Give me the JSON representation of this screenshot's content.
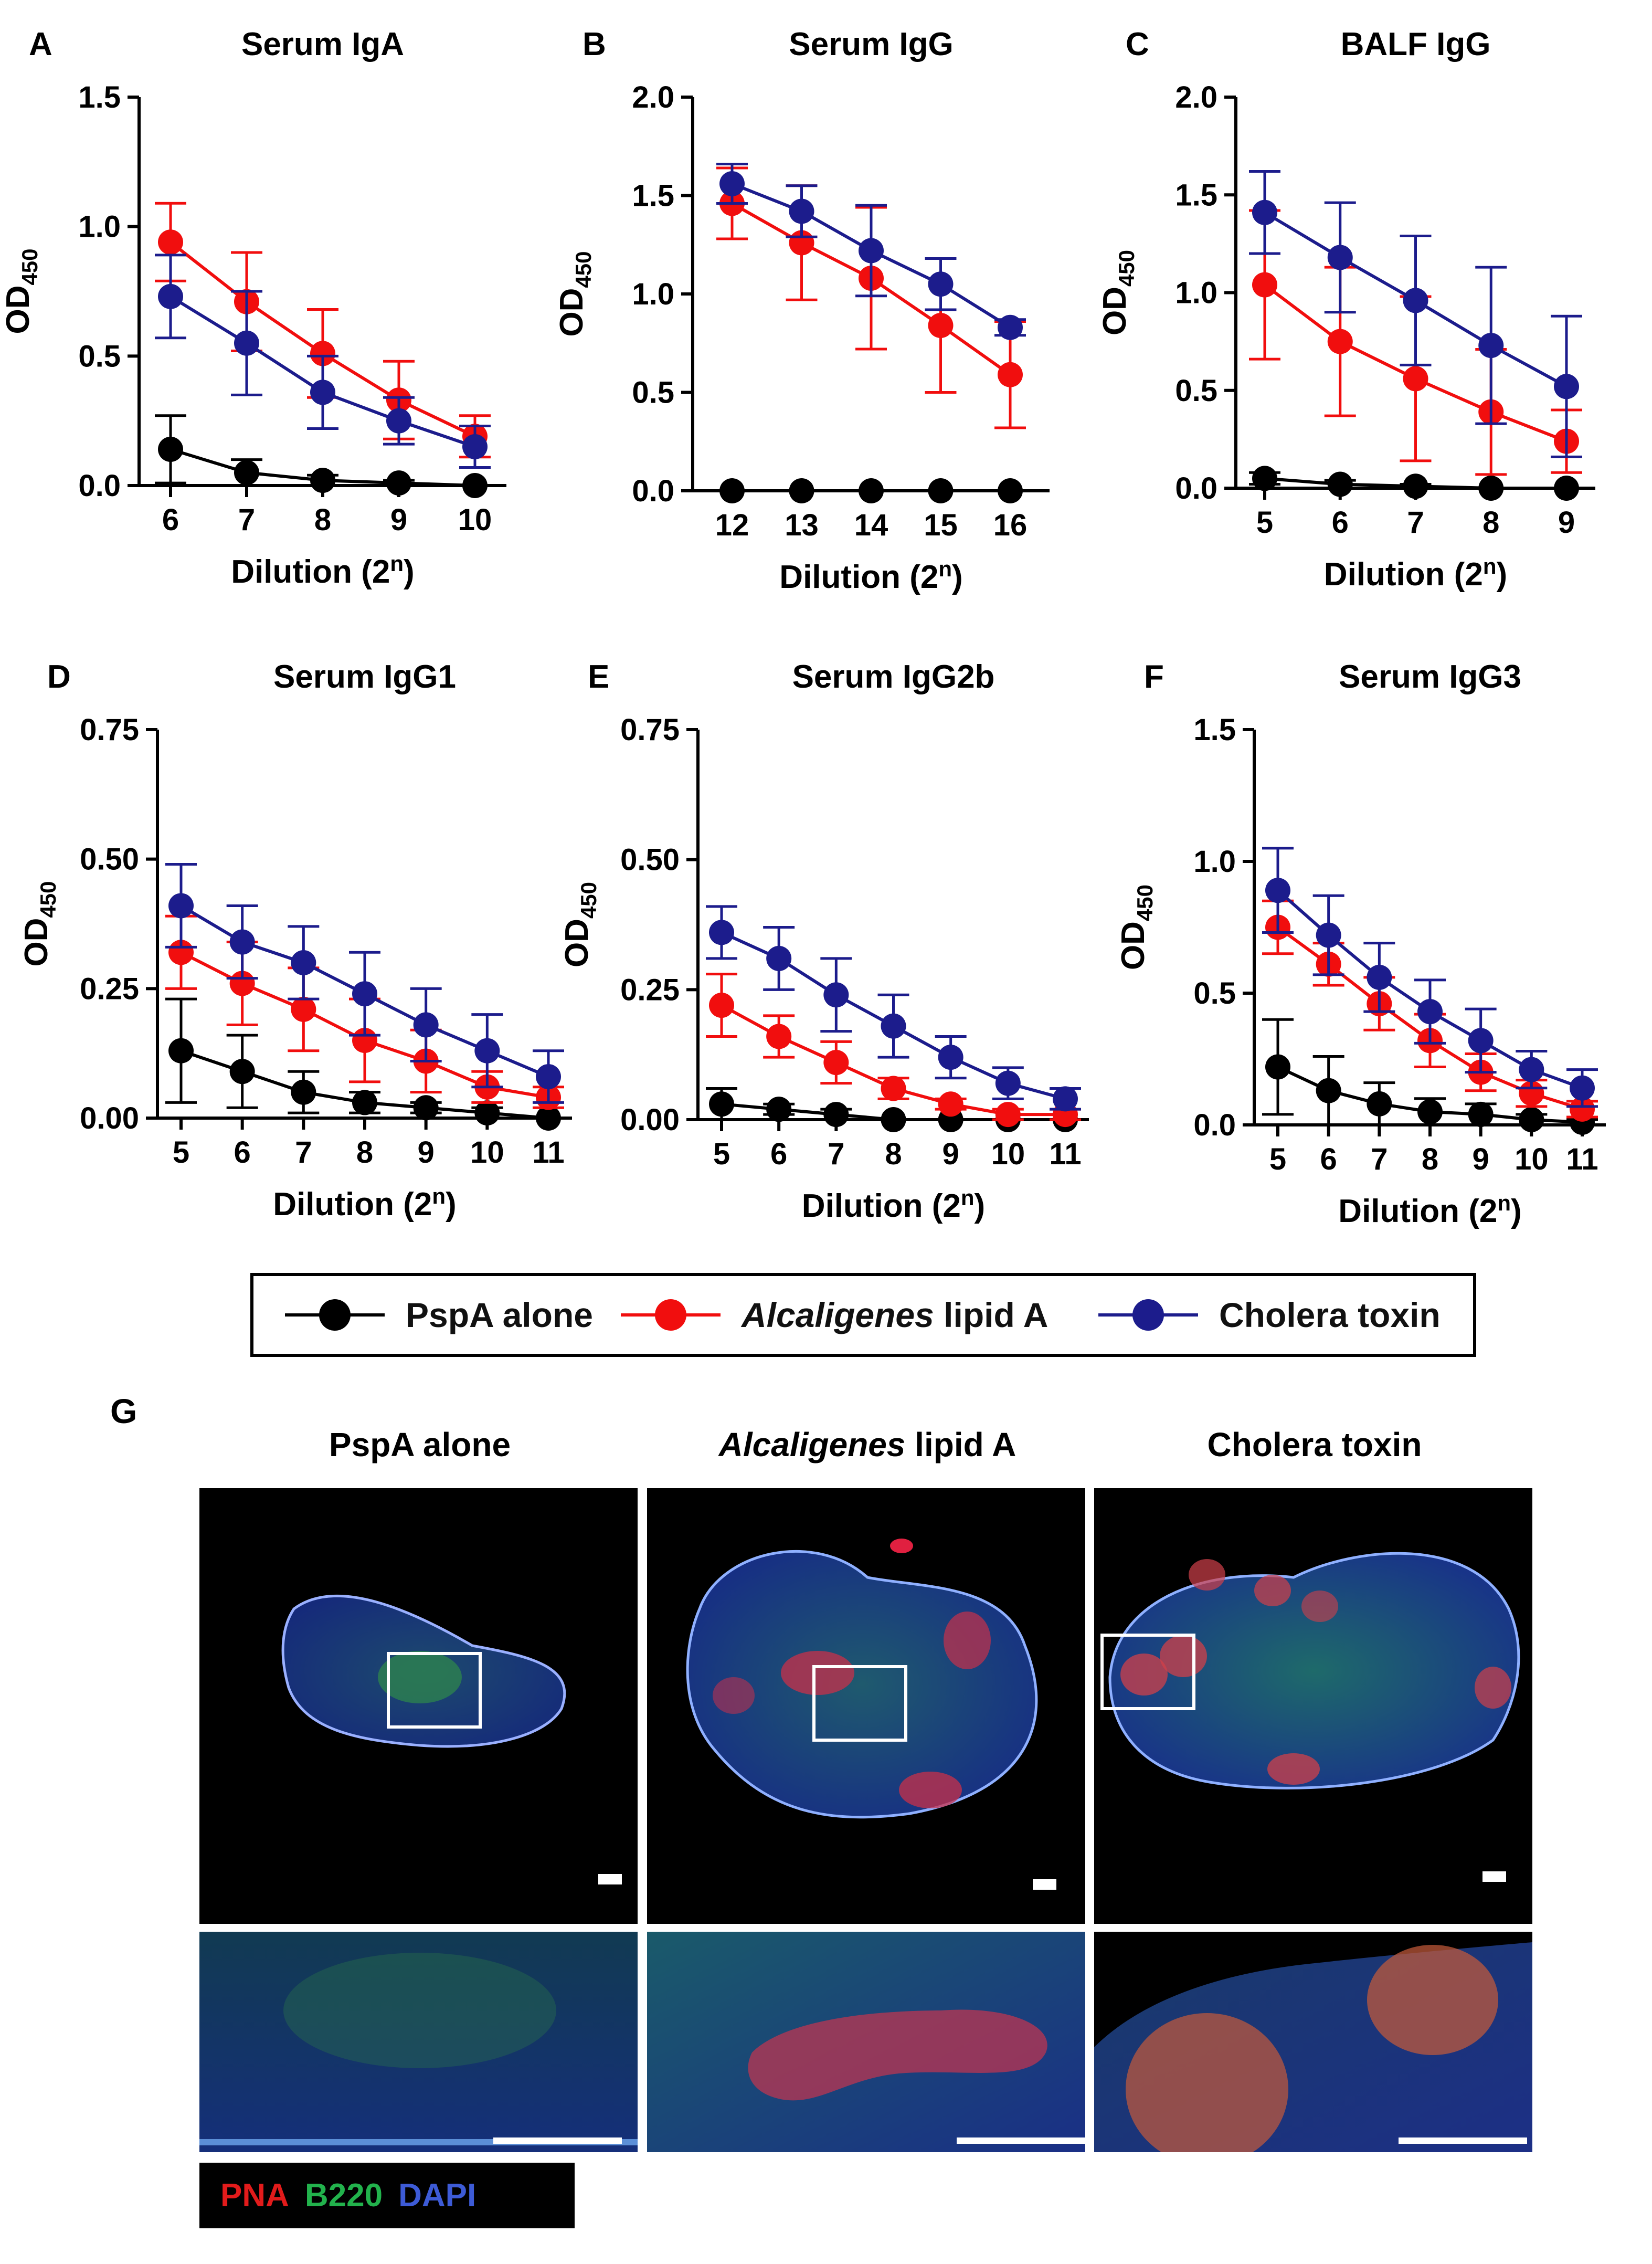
{
  "chart_data": [
    {
      "panel": "A",
      "type": "line",
      "title": "Serum IgA",
      "xlabel": "Dilution (2ⁿ)",
      "ylabel": "OD450",
      "x": [
        6,
        7,
        8,
        9,
        10
      ],
      "ylim": [
        0,
        1.5
      ],
      "yticks": [
        "0.0",
        "0.5",
        "1.0",
        "1.5"
      ],
      "series": [
        {
          "name": "PspA alone",
          "values": [
            0.14,
            0.05,
            0.02,
            0.01,
            0.0
          ],
          "errors": [
            0.13,
            0.05,
            0.02,
            0.01,
            0.0
          ]
        },
        {
          "name": "Alcaligenes lipid A",
          "values": [
            0.94,
            0.71,
            0.51,
            0.33,
            0.19
          ],
          "errors": [
            0.15,
            0.19,
            0.17,
            0.15,
            0.08
          ]
        },
        {
          "name": "Cholera toxin",
          "values": [
            0.73,
            0.55,
            0.36,
            0.25,
            0.15
          ],
          "errors": [
            0.16,
            0.2,
            0.14,
            0.09,
            0.08
          ]
        }
      ]
    },
    {
      "panel": "B",
      "type": "line",
      "title": "Serum IgG",
      "xlabel": "Dilution (2ⁿ)",
      "ylabel": "OD450",
      "x": [
        12,
        13,
        14,
        15,
        16
      ],
      "ylim": [
        0,
        2.0
      ],
      "yticks": [
        "0.0",
        "0.5",
        "1.0",
        "1.5",
        "2.0"
      ],
      "series": [
        {
          "name": "PspA alone",
          "values": [
            0.0,
            0.0,
            0.0,
            0.0,
            0.0
          ],
          "errors": [
            0,
            0,
            0,
            0,
            0
          ]
        },
        {
          "name": "Alcaligenes lipid A",
          "values": [
            1.46,
            1.26,
            1.08,
            0.84,
            0.59
          ],
          "errors": [
            0.18,
            0.29,
            0.36,
            0.34,
            0.27
          ]
        },
        {
          "name": "Cholera toxin",
          "values": [
            1.56,
            1.42,
            1.22,
            1.05,
            0.83
          ],
          "errors": [
            0.1,
            0.13,
            0.23,
            0.13,
            0.04
          ]
        }
      ]
    },
    {
      "panel": "C",
      "type": "line",
      "title": "BALF IgG",
      "xlabel": "Dilution (2ⁿ)",
      "ylabel": "OD450",
      "x": [
        5,
        6,
        7,
        8,
        9
      ],
      "ylim": [
        0,
        2.0
      ],
      "yticks": [
        "0.0",
        "0.5",
        "1.0",
        "1.5",
        "2.0"
      ],
      "series": [
        {
          "name": "PspA alone",
          "values": [
            0.05,
            0.02,
            0.01,
            0.0,
            0.0
          ],
          "errors": [
            0.03,
            0.02,
            0.01,
            0.0,
            0.0
          ]
        },
        {
          "name": "Alcaligenes lipid A",
          "values": [
            1.04,
            0.75,
            0.56,
            0.39,
            0.24
          ],
          "errors": [
            0.38,
            0.38,
            0.42,
            0.32,
            0.16
          ]
        },
        {
          "name": "Cholera toxin",
          "values": [
            1.41,
            1.18,
            0.96,
            0.73,
            0.52
          ],
          "errors": [
            0.21,
            0.28,
            0.33,
            0.4,
            0.36
          ]
        }
      ]
    },
    {
      "panel": "D",
      "type": "line",
      "title": "Serum IgG1",
      "xlabel": "Dilution (2ⁿ)",
      "ylabel": "OD450",
      "x": [
        5,
        6,
        7,
        8,
        9,
        10,
        11
      ],
      "ylim": [
        0,
        0.75
      ],
      "yticks": [
        "0.00",
        "0.25",
        "0.50",
        "0.75"
      ],
      "series": [
        {
          "name": "PspA alone",
          "values": [
            0.13,
            0.09,
            0.05,
            0.03,
            0.02,
            0.01,
            0.0
          ],
          "errors": [
            0.1,
            0.07,
            0.04,
            0.02,
            0.01,
            0.01,
            0.0
          ]
        },
        {
          "name": "Alcaligenes lipid A",
          "values": [
            0.32,
            0.26,
            0.21,
            0.15,
            0.11,
            0.06,
            0.04
          ],
          "errors": [
            0.07,
            0.08,
            0.08,
            0.08,
            0.06,
            0.03,
            0.02
          ]
        },
        {
          "name": "Cholera toxin",
          "values": [
            0.41,
            0.34,
            0.3,
            0.24,
            0.18,
            0.13,
            0.08
          ],
          "errors": [
            0.08,
            0.07,
            0.07,
            0.08,
            0.07,
            0.07,
            0.05
          ]
        }
      ]
    },
    {
      "panel": "E",
      "type": "line",
      "title": "Serum IgG2b",
      "xlabel": "Dilution (2ⁿ)",
      "ylabel": "OD450",
      "x": [
        5,
        6,
        7,
        8,
        9,
        10,
        11
      ],
      "ylim": [
        0,
        0.75
      ],
      "yticks": [
        "0.00",
        "0.25",
        "0.50",
        "0.75"
      ],
      "series": [
        {
          "name": "PspA alone",
          "values": [
            0.03,
            0.02,
            0.01,
            0.0,
            0.0,
            0.0,
            0.0
          ],
          "errors": [
            0.03,
            0.01,
            0.01,
            0.0,
            0.0,
            0.0,
            0.0
          ]
        },
        {
          "name": "Alcaligenes lipid A",
          "values": [
            0.22,
            0.16,
            0.11,
            0.06,
            0.03,
            0.01,
            0.01
          ],
          "errors": [
            0.06,
            0.04,
            0.04,
            0.02,
            0.01,
            0.01,
            0.01
          ]
        },
        {
          "name": "Cholera toxin",
          "values": [
            0.36,
            0.31,
            0.24,
            0.18,
            0.12,
            0.07,
            0.04
          ],
          "errors": [
            0.05,
            0.06,
            0.07,
            0.06,
            0.04,
            0.03,
            0.02
          ]
        }
      ]
    },
    {
      "panel": "F",
      "type": "line",
      "title": "Serum IgG3",
      "xlabel": "Dilution (2ⁿ)",
      "ylabel": "OD450",
      "x": [
        5,
        6,
        7,
        8,
        9,
        10,
        11
      ],
      "ylim": [
        0,
        1.5
      ],
      "yticks": [
        "0.0",
        "0.5",
        "1.0",
        "1.5"
      ],
      "series": [
        {
          "name": "PspA alone",
          "values": [
            0.22,
            0.13,
            0.08,
            0.05,
            0.04,
            0.02,
            0.01
          ],
          "errors": [
            0.18,
            0.13,
            0.08,
            0.05,
            0.04,
            0.02,
            0.01
          ]
        },
        {
          "name": "Alcaligenes lipid A",
          "values": [
            0.75,
            0.61,
            0.46,
            0.32,
            0.2,
            0.12,
            0.06
          ],
          "errors": [
            0.1,
            0.08,
            0.1,
            0.1,
            0.07,
            0.05,
            0.03
          ]
        },
        {
          "name": "Cholera toxin",
          "values": [
            0.89,
            0.72,
            0.56,
            0.43,
            0.32,
            0.21,
            0.14
          ],
          "errors": [
            0.16,
            0.15,
            0.13,
            0.12,
            0.12,
            0.07,
            0.07
          ]
        }
      ]
    }
  ],
  "colors": {
    "PspA alone": "#000000",
    "Alcaligenes lipid A": "#f10e0e",
    "Cholera toxin": "#1c1c8c"
  },
  "legend": {
    "pspa": "PspA alone",
    "alc_italic": "Alcaligenes",
    "alc_rest": " lipid A",
    "ct": "Cholera toxin"
  },
  "panel_g": {
    "label": "G",
    "columns": [
      {
        "title": "PspA alone"
      },
      {
        "title_italic": "Alcaligenes",
        "title_rest": " lipid A"
      },
      {
        "title": "Cholera toxin"
      }
    ],
    "stains": {
      "pna": "PNA",
      "b220": "B220",
      "dapi": "DAPI"
    },
    "stain_colors": {
      "pna": "#e21b1b",
      "b220": "#22b24c",
      "dapi": "#3d5bd6"
    }
  }
}
